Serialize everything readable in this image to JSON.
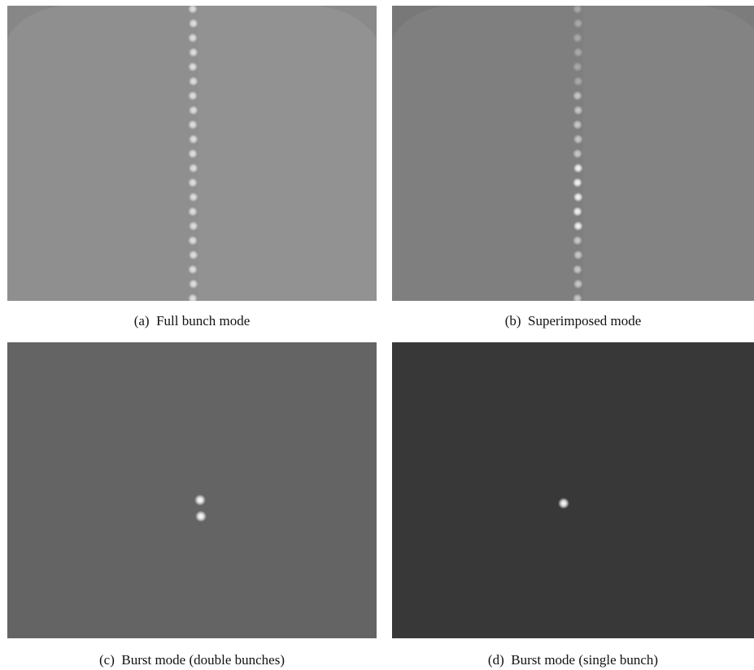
{
  "figure": {
    "panels": [
      {
        "caption": "(a)  Full bunch mode"
      },
      {
        "caption": "(b)  Superimposed mode"
      },
      {
        "caption": "(c)  Burst mode (double bunches)"
      },
      {
        "caption": "(d)  Burst mode (single bunch)"
      }
    ]
  }
}
